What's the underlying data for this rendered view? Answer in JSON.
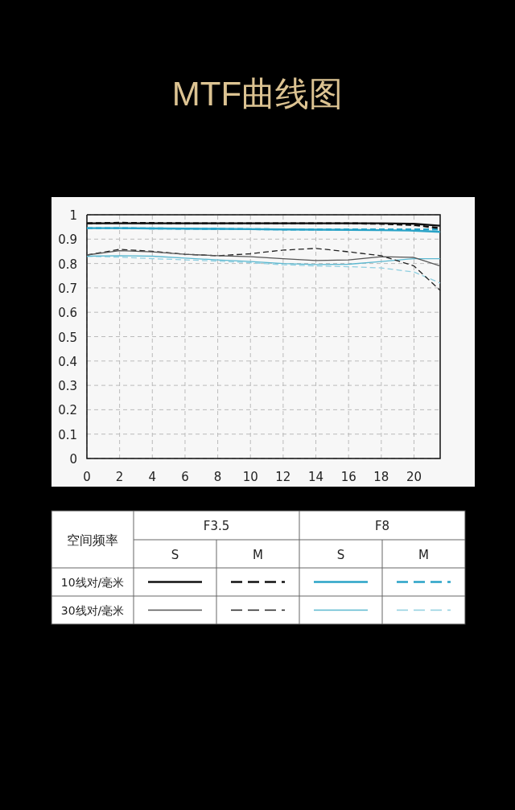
{
  "chart_data": {
    "type": "line",
    "title": "MTF曲线图",
    "legend_title": "空间频率",
    "annotations": [
      "F3.5",
      "F8",
      "S",
      "M",
      "S",
      "M",
      "10线对/毫米",
      "30线对/毫米"
    ],
    "x": [
      0,
      2,
      4,
      6,
      8,
      10,
      12,
      14,
      16,
      18,
      20,
      21.6
    ],
    "xlim": [
      0,
      21.6
    ],
    "xticks": [
      0,
      2,
      4,
      6,
      8,
      10,
      12,
      14,
      16,
      18,
      20
    ],
    "ylim": [
      0,
      1
    ],
    "yticks": [
      0,
      0.1,
      0.2,
      0.3,
      0.4,
      0.5,
      0.6,
      0.7,
      0.8,
      0.9,
      1
    ],
    "grid": true,
    "marker": "none",
    "series": [
      {
        "color": "#111111",
        "line_style": "solid",
        "values": [
          0.965,
          0.965,
          0.965,
          0.965,
          0.965,
          0.965,
          0.965,
          0.965,
          0.965,
          0.965,
          0.963,
          0.955
        ]
      },
      {
        "color": "#111111",
        "line_style": "dashed",
        "values": [
          0.965,
          0.967,
          0.966,
          0.965,
          0.965,
          0.965,
          0.965,
          0.965,
          0.965,
          0.963,
          0.958,
          0.945
        ]
      },
      {
        "color": "#2aa3c7",
        "line_style": "solid",
        "values": [
          0.945,
          0.945,
          0.944,
          0.943,
          0.942,
          0.941,
          0.94,
          0.939,
          0.938,
          0.937,
          0.935,
          0.93
        ]
      },
      {
        "color": "#2aa3c7",
        "line_style": "dashed",
        "values": [
          0.945,
          0.945,
          0.944,
          0.943,
          0.942,
          0.941,
          0.94,
          0.94,
          0.94,
          0.94,
          0.94,
          0.94
        ]
      },
      {
        "color": "#555555",
        "line_style": "solid",
        "values": [
          0.835,
          0.853,
          0.848,
          0.838,
          0.832,
          0.828,
          0.82,
          0.812,
          0.815,
          0.828,
          0.825,
          0.79
        ]
      },
      {
        "color": "#222222",
        "line_style": "dashed",
        "values": [
          0.835,
          0.858,
          0.85,
          0.838,
          0.832,
          0.84,
          0.855,
          0.862,
          0.848,
          0.832,
          0.79,
          0.69
        ]
      },
      {
        "color": "#5bb8d0",
        "line_style": "solid",
        "values": [
          0.83,
          0.832,
          0.83,
          0.822,
          0.815,
          0.808,
          0.8,
          0.796,
          0.797,
          0.808,
          0.82,
          0.82
        ]
      },
      {
        "color": "#8fcfe0",
        "line_style": "dashed",
        "values": [
          0.83,
          0.826,
          0.82,
          0.815,
          0.81,
          0.803,
          0.795,
          0.79,
          0.787,
          0.782,
          0.765,
          0.72
        ]
      }
    ]
  }
}
